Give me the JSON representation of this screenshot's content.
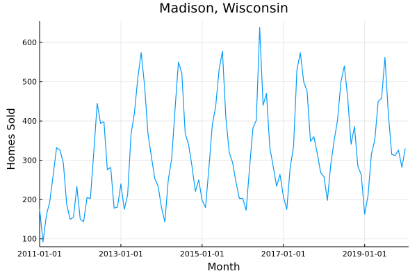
{
  "chart_data": {
    "type": "line",
    "title": "Madison, Wisconsin",
    "xlabel": "Month",
    "ylabel": "Homes Sold",
    "x_start": "2011-01-01",
    "x_step": "monthly",
    "xlim_months": [
      0,
      109
    ],
    "ylim": [
      80,
      655
    ],
    "x_ticks": [
      {
        "month_index": 0,
        "label": "2011-01-01"
      },
      {
        "month_index": 24,
        "label": "2013-01-01"
      },
      {
        "month_index": 48,
        "label": "2015-01-01"
      },
      {
        "month_index": 72,
        "label": "2017-01-01"
      },
      {
        "month_index": 96,
        "label": "2019-01-01"
      }
    ],
    "y_ticks": [
      100,
      200,
      300,
      400,
      500,
      600
    ],
    "y_tick_labels": [
      "100",
      "200",
      "300",
      "400",
      "500",
      "600"
    ],
    "grid": true,
    "legend": "none",
    "series": [
      {
        "name": "Homes Sold",
        "color": "#009af9",
        "values": [
          176,
          92,
          160,
          195,
          262,
          332,
          326,
          294,
          188,
          150,
          155,
          233,
          150,
          144,
          205,
          203,
          320,
          445,
          394,
          398,
          276,
          282,
          178,
          181,
          240,
          175,
          212,
          366,
          420,
          510,
          574,
          490,
          368,
          310,
          254,
          234,
          180,
          143,
          250,
          303,
          430,
          550,
          522,
          368,
          340,
          285,
          221,
          250,
          198,
          180,
          280,
          390,
          437,
          530,
          578,
          410,
          320,
          294,
          244,
          203,
          203,
          173,
          280,
          382,
          402,
          638,
          440,
          470,
          332,
          284,
          234,
          264,
          208,
          175,
          281,
          335,
          530,
          574,
          500,
          476,
          348,
          360,
          318,
          269,
          258,
          198,
          290,
          351,
          403,
          500,
          540,
          459,
          341,
          386,
          285,
          263,
          163,
          210,
          316,
          352,
          450,
          458,
          562,
          418,
          315,
          312,
          326,
          282,
          330
        ]
      }
    ]
  }
}
